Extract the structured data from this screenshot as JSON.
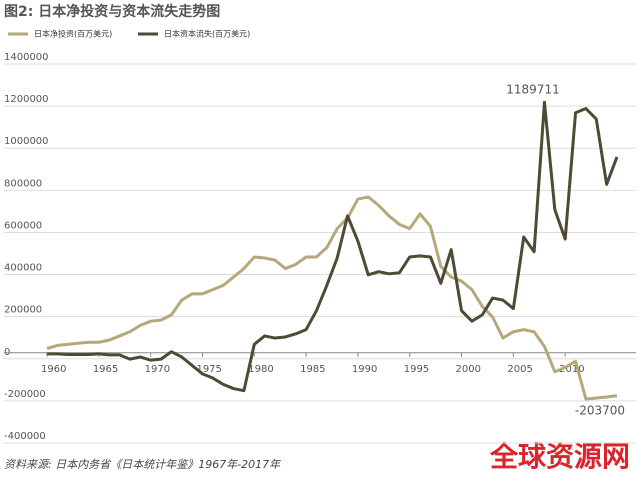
{
  "chart_data": {
    "type": "line",
    "title": "图2: 日本净投资与资本流失走势图",
    "x": [
      1960,
      1961,
      1962,
      1963,
      1964,
      1965,
      1966,
      1967,
      1968,
      1969,
      1970,
      1971,
      1972,
      1973,
      1974,
      1975,
      1976,
      1977,
      1978,
      1979,
      1980,
      1981,
      1982,
      1983,
      1984,
      1985,
      1986,
      1987,
      1988,
      1989,
      1990,
      1991,
      1992,
      1993,
      1994,
      1995,
      1996,
      1997,
      1998,
      1999,
      2000,
      2001,
      2002,
      2003,
      2004,
      2005,
      2006,
      2007,
      2008,
      2009,
      2010,
      2011,
      2012,
      2013,
      2014,
      2015
    ],
    "series": [
      {
        "name": "日本净投资(百万美元)",
        "color": "#b5a97a",
        "values": [
          20000,
          35000,
          40000,
          45000,
          50000,
          50000,
          60000,
          80000,
          100000,
          130000,
          150000,
          155000,
          180000,
          250000,
          280000,
          280000,
          300000,
          320000,
          360000,
          400000,
          455000,
          450000,
          440000,
          400000,
          420000,
          455000,
          455000,
          500000,
          590000,
          640000,
          730000,
          740000,
          700000,
          650000,
          610000,
          590000,
          660000,
          600000,
          410000,
          360000,
          340000,
          300000,
          220000,
          170000,
          70000,
          100000,
          110000,
          100000,
          30000,
          -90000,
          -70000,
          -40000,
          -220000,
          -215000,
          -210000,
          -203700
        ]
      },
      {
        "name": "日本资本流失(百万美元)",
        "color": "#4f4a34",
        "values": [
          -5000,
          -5000,
          -8000,
          -8000,
          -8000,
          -5000,
          -10000,
          -10000,
          -30000,
          -20000,
          -35000,
          -30000,
          5000,
          -20000,
          -60000,
          -100000,
          -120000,
          -150000,
          -170000,
          -180000,
          40000,
          80000,
          70000,
          75000,
          90000,
          110000,
          200000,
          320000,
          450000,
          650000,
          530000,
          370000,
          385000,
          375000,
          380000,
          455000,
          460000,
          455000,
          330000,
          490000,
          200000,
          150000,
          180000,
          260000,
          250000,
          210000,
          550000,
          480000,
          1189711,
          680000,
          540000,
          1140000,
          1160000,
          1110000,
          800000,
          930000
        ]
      }
    ],
    "xlim": [
      1960,
      2015
    ],
    "xticks": [
      1960,
      1965,
      1970,
      1975,
      1980,
      1985,
      1990,
      1995,
      2000,
      2005,
      2010
    ],
    "ylim": [
      -400000,
      1400000
    ],
    "yticks": [
      -400000,
      -200000,
      0,
      200000,
      400000,
      600000,
      800000,
      1000000,
      1200000,
      1400000
    ],
    "grid": true,
    "annotations": [
      {
        "text": "1189711"
      },
      {
        "text": "-203700"
      }
    ],
    "source": "资料来源: 日本内务省《日本统计年鉴》1967年-2017年",
    "watermark": "全球资源网"
  }
}
